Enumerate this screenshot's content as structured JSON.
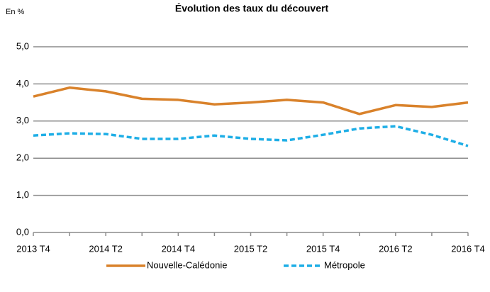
{
  "chart_data": {
    "type": "line",
    "title": "Évolution des taux du découvert",
    "y_unit_label": "En %",
    "categories": [
      "2013 T4",
      null,
      "2014 T2",
      null,
      "2014 T4",
      null,
      "2015 T2",
      null,
      "2015 T4",
      null,
      "2016 T2",
      null,
      "2016 T4"
    ],
    "series": [
      {
        "name": "Nouvelle-Calédonie",
        "color": "#d9822b",
        "dashed": false,
        "values": [
          3.66,
          3.9,
          3.8,
          3.6,
          3.57,
          3.45,
          3.5,
          3.57,
          3.5,
          3.19,
          3.43,
          3.38,
          3.5
        ]
      },
      {
        "name": "Métropole",
        "color": "#1eaee6",
        "dashed": true,
        "values": [
          2.61,
          2.67,
          2.65,
          2.52,
          2.52,
          2.61,
          2.52,
          2.48,
          2.63,
          2.8,
          2.86,
          2.63,
          2.33
        ]
      }
    ],
    "ylim": [
      0,
      5
    ],
    "yticks": [
      {
        "value": 0,
        "label": "0,0"
      },
      {
        "value": 1,
        "label": "1,0"
      },
      {
        "value": 2,
        "label": "2,0"
      },
      {
        "value": 3,
        "label": "3,0"
      },
      {
        "value": 4,
        "label": "4,0"
      },
      {
        "value": 5,
        "label": "5,0"
      }
    ],
    "grid": true,
    "legend": "bottom"
  }
}
